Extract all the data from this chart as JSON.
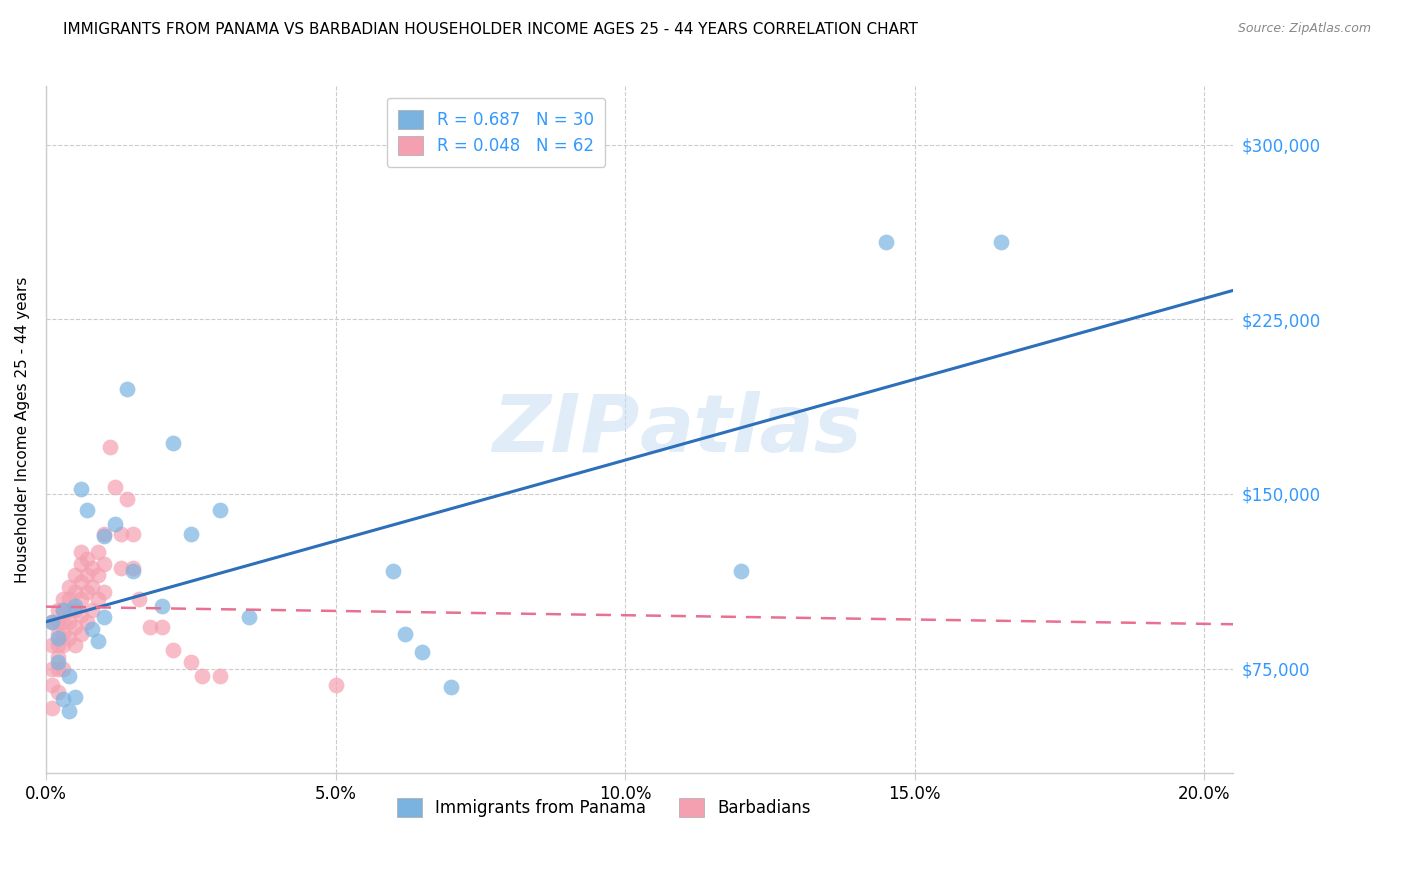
{
  "title": "IMMIGRANTS FROM PANAMA VS BARBADIAN HOUSEHOLDER INCOME AGES 25 - 44 YEARS CORRELATION CHART",
  "source": "Source: ZipAtlas.com",
  "ylabel": "Householder Income Ages 25 - 44 years",
  "xlabel_ticks": [
    "0.0%",
    "5.0%",
    "10.0%",
    "15.0%",
    "20.0%"
  ],
  "xlabel_vals": [
    0.0,
    0.05,
    0.1,
    0.15,
    0.2
  ],
  "ylabel_vals": [
    75000,
    150000,
    225000,
    300000
  ],
  "xlim": [
    0.0,
    0.205
  ],
  "ylim": [
    30000,
    325000
  ],
  "panama_R": 0.687,
  "panama_N": 30,
  "barbadian_R": 0.048,
  "barbadian_N": 62,
  "panama_color": "#7ab3e0",
  "barbadian_color": "#f4a0b0",
  "panama_line_color": "#2e6fba",
  "barbadian_line_color": "#e87090",
  "watermark_zip": "ZIP",
  "watermark_atlas": "atlas",
  "legend_label_1": "Immigrants from Panama",
  "legend_label_2": "Barbadians",
  "panama_x": [
    0.001,
    0.002,
    0.002,
    0.003,
    0.003,
    0.004,
    0.004,
    0.005,
    0.005,
    0.006,
    0.007,
    0.008,
    0.009,
    0.01,
    0.01,
    0.012,
    0.014,
    0.015,
    0.02,
    0.022,
    0.025,
    0.03,
    0.035,
    0.06,
    0.062,
    0.065,
    0.07,
    0.12,
    0.145,
    0.165
  ],
  "panama_y": [
    95000,
    88000,
    78000,
    100000,
    62000,
    72000,
    57000,
    102000,
    63000,
    152000,
    143000,
    92000,
    87000,
    132000,
    97000,
    137000,
    195000,
    117000,
    102000,
    172000,
    133000,
    143000,
    97000,
    117000,
    90000,
    82000,
    67000,
    117000,
    258000,
    258000
  ],
  "barbadian_x": [
    0.001,
    0.001,
    0.001,
    0.001,
    0.001,
    0.002,
    0.002,
    0.002,
    0.002,
    0.002,
    0.002,
    0.002,
    0.003,
    0.003,
    0.003,
    0.003,
    0.003,
    0.003,
    0.004,
    0.004,
    0.004,
    0.004,
    0.004,
    0.005,
    0.005,
    0.005,
    0.005,
    0.005,
    0.006,
    0.006,
    0.006,
    0.006,
    0.006,
    0.006,
    0.007,
    0.007,
    0.007,
    0.007,
    0.008,
    0.008,
    0.008,
    0.009,
    0.009,
    0.009,
    0.01,
    0.01,
    0.01,
    0.011,
    0.012,
    0.013,
    0.013,
    0.014,
    0.015,
    0.015,
    0.016,
    0.018,
    0.02,
    0.022,
    0.025,
    0.027,
    0.03,
    0.05
  ],
  "barbadian_y": [
    95000,
    85000,
    75000,
    68000,
    58000,
    100000,
    95000,
    90000,
    85000,
    80000,
    75000,
    65000,
    105000,
    100000,
    95000,
    90000,
    85000,
    75000,
    110000,
    105000,
    100000,
    95000,
    88000,
    115000,
    108000,
    100000,
    93000,
    85000,
    125000,
    120000,
    112000,
    105000,
    98000,
    90000,
    122000,
    115000,
    108000,
    95000,
    118000,
    110000,
    100000,
    125000,
    115000,
    105000,
    133000,
    120000,
    108000,
    170000,
    153000,
    133000,
    118000,
    148000,
    133000,
    118000,
    105000,
    93000,
    93000,
    83000,
    78000,
    72000,
    72000,
    68000
  ]
}
